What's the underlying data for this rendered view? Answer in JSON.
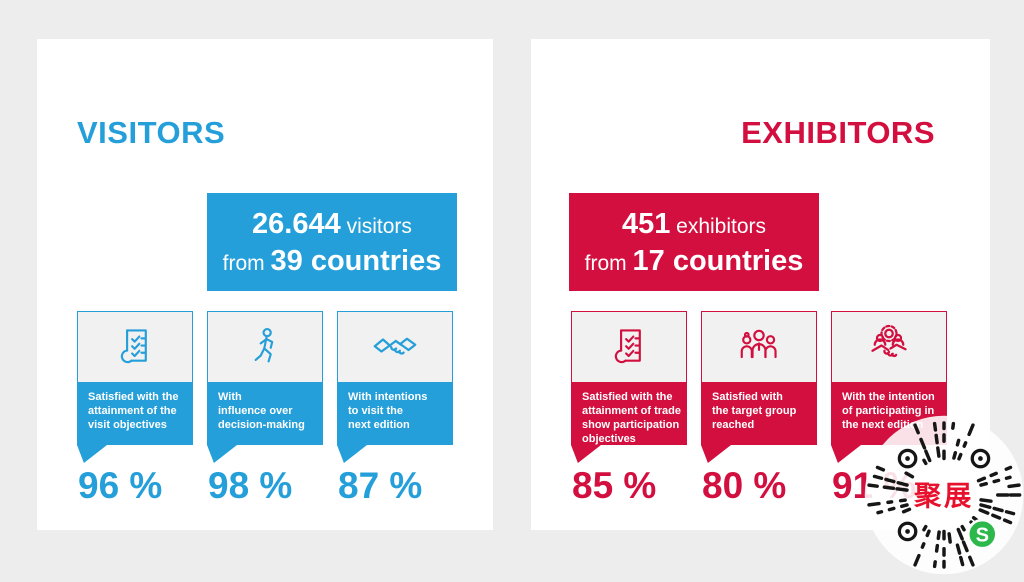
{
  "page": {
    "background_color": "#ededed",
    "card_color": "#ffffff"
  },
  "panels": [
    {
      "id": "visitors",
      "title": "VISITORS",
      "accent_color": "#259fd9",
      "headline": {
        "number": "26.644",
        "unit": " visitors",
        "from": "from ",
        "countries": "39 countries"
      },
      "stats": [
        {
          "icon": "checklist-icon",
          "caption": "Satisfied with the\nattainment of the\nvisit objectives",
          "value": "96 %"
        },
        {
          "icon": "walking-person-icon",
          "caption": "With\ninfluence over\ndecision-making",
          "value": "98 %"
        },
        {
          "icon": "handshake-icon",
          "caption": "With intentions\nto visit the\nnext edition",
          "value": "87 %"
        }
      ]
    },
    {
      "id": "exhibitors",
      "title": "EXHIBITORS",
      "accent_color": "#d30f3f",
      "headline": {
        "number": "451",
        "unit": " exhibitors",
        "from": "from ",
        "countries": "17 countries"
      },
      "stats": [
        {
          "icon": "checklist-icon",
          "caption": "Satisfied with the\nattainment of trade\nshow participation\nobjectives",
          "value": "85 %"
        },
        {
          "icon": "people-group-icon",
          "caption": "Satisfied with\nthe target group\nreached",
          "value": "80 %"
        },
        {
          "icon": "partnership-icon",
          "caption": "With the intention\nof participating in\nthe next edition",
          "value": "91 %"
        }
      ]
    }
  ],
  "stamp": {
    "center_text": "聚展",
    "badge_letter": "S",
    "dot_color": "#161616",
    "text_color": "#e8112d",
    "badge_color": "#2db84c"
  }
}
